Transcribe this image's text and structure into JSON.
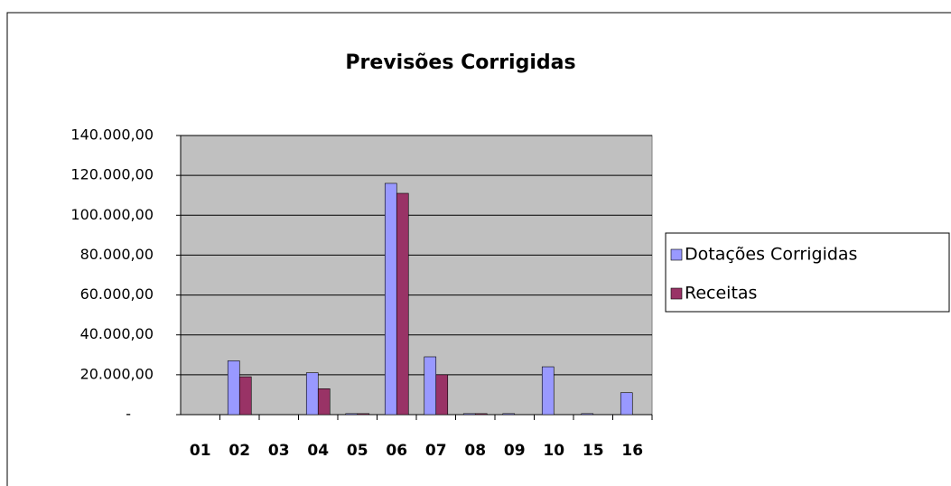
{
  "chart_data": {
    "type": "bar",
    "title": "Previsões Corrigidas",
    "categories": [
      "01",
      "02",
      "03",
      "04",
      "05",
      "06",
      "07",
      "08",
      "09",
      "10",
      "15",
      "16"
    ],
    "series": [
      {
        "name": "Dotações Corrigidas",
        "color": "#9999ff",
        "values": [
          0,
          27000,
          0,
          21000,
          500,
          116000,
          29000,
          500,
          500,
          24000,
          500,
          11000
        ]
      },
      {
        "name": "Receitas",
        "color": "#993366",
        "values": [
          0,
          19000,
          0,
          13000,
          500,
          111000,
          20000,
          500,
          0,
          0,
          0,
          0
        ]
      }
    ],
    "ylim": [
      0,
      140000
    ],
    "yticks": [
      {
        "value": 0,
        "label": "-"
      },
      {
        "value": 20000,
        "label": "20.000,00"
      },
      {
        "value": 40000,
        "label": "40.000,00"
      },
      {
        "value": 60000,
        "label": "60.000,00"
      },
      {
        "value": 80000,
        "label": "80.000,00"
      },
      {
        "value": 100000,
        "label": "100.000,00"
      },
      {
        "value": 120000,
        "label": "120.000,00"
      },
      {
        "value": 140000,
        "label": "140.000,00"
      }
    ],
    "grid": true,
    "legend": "right"
  }
}
